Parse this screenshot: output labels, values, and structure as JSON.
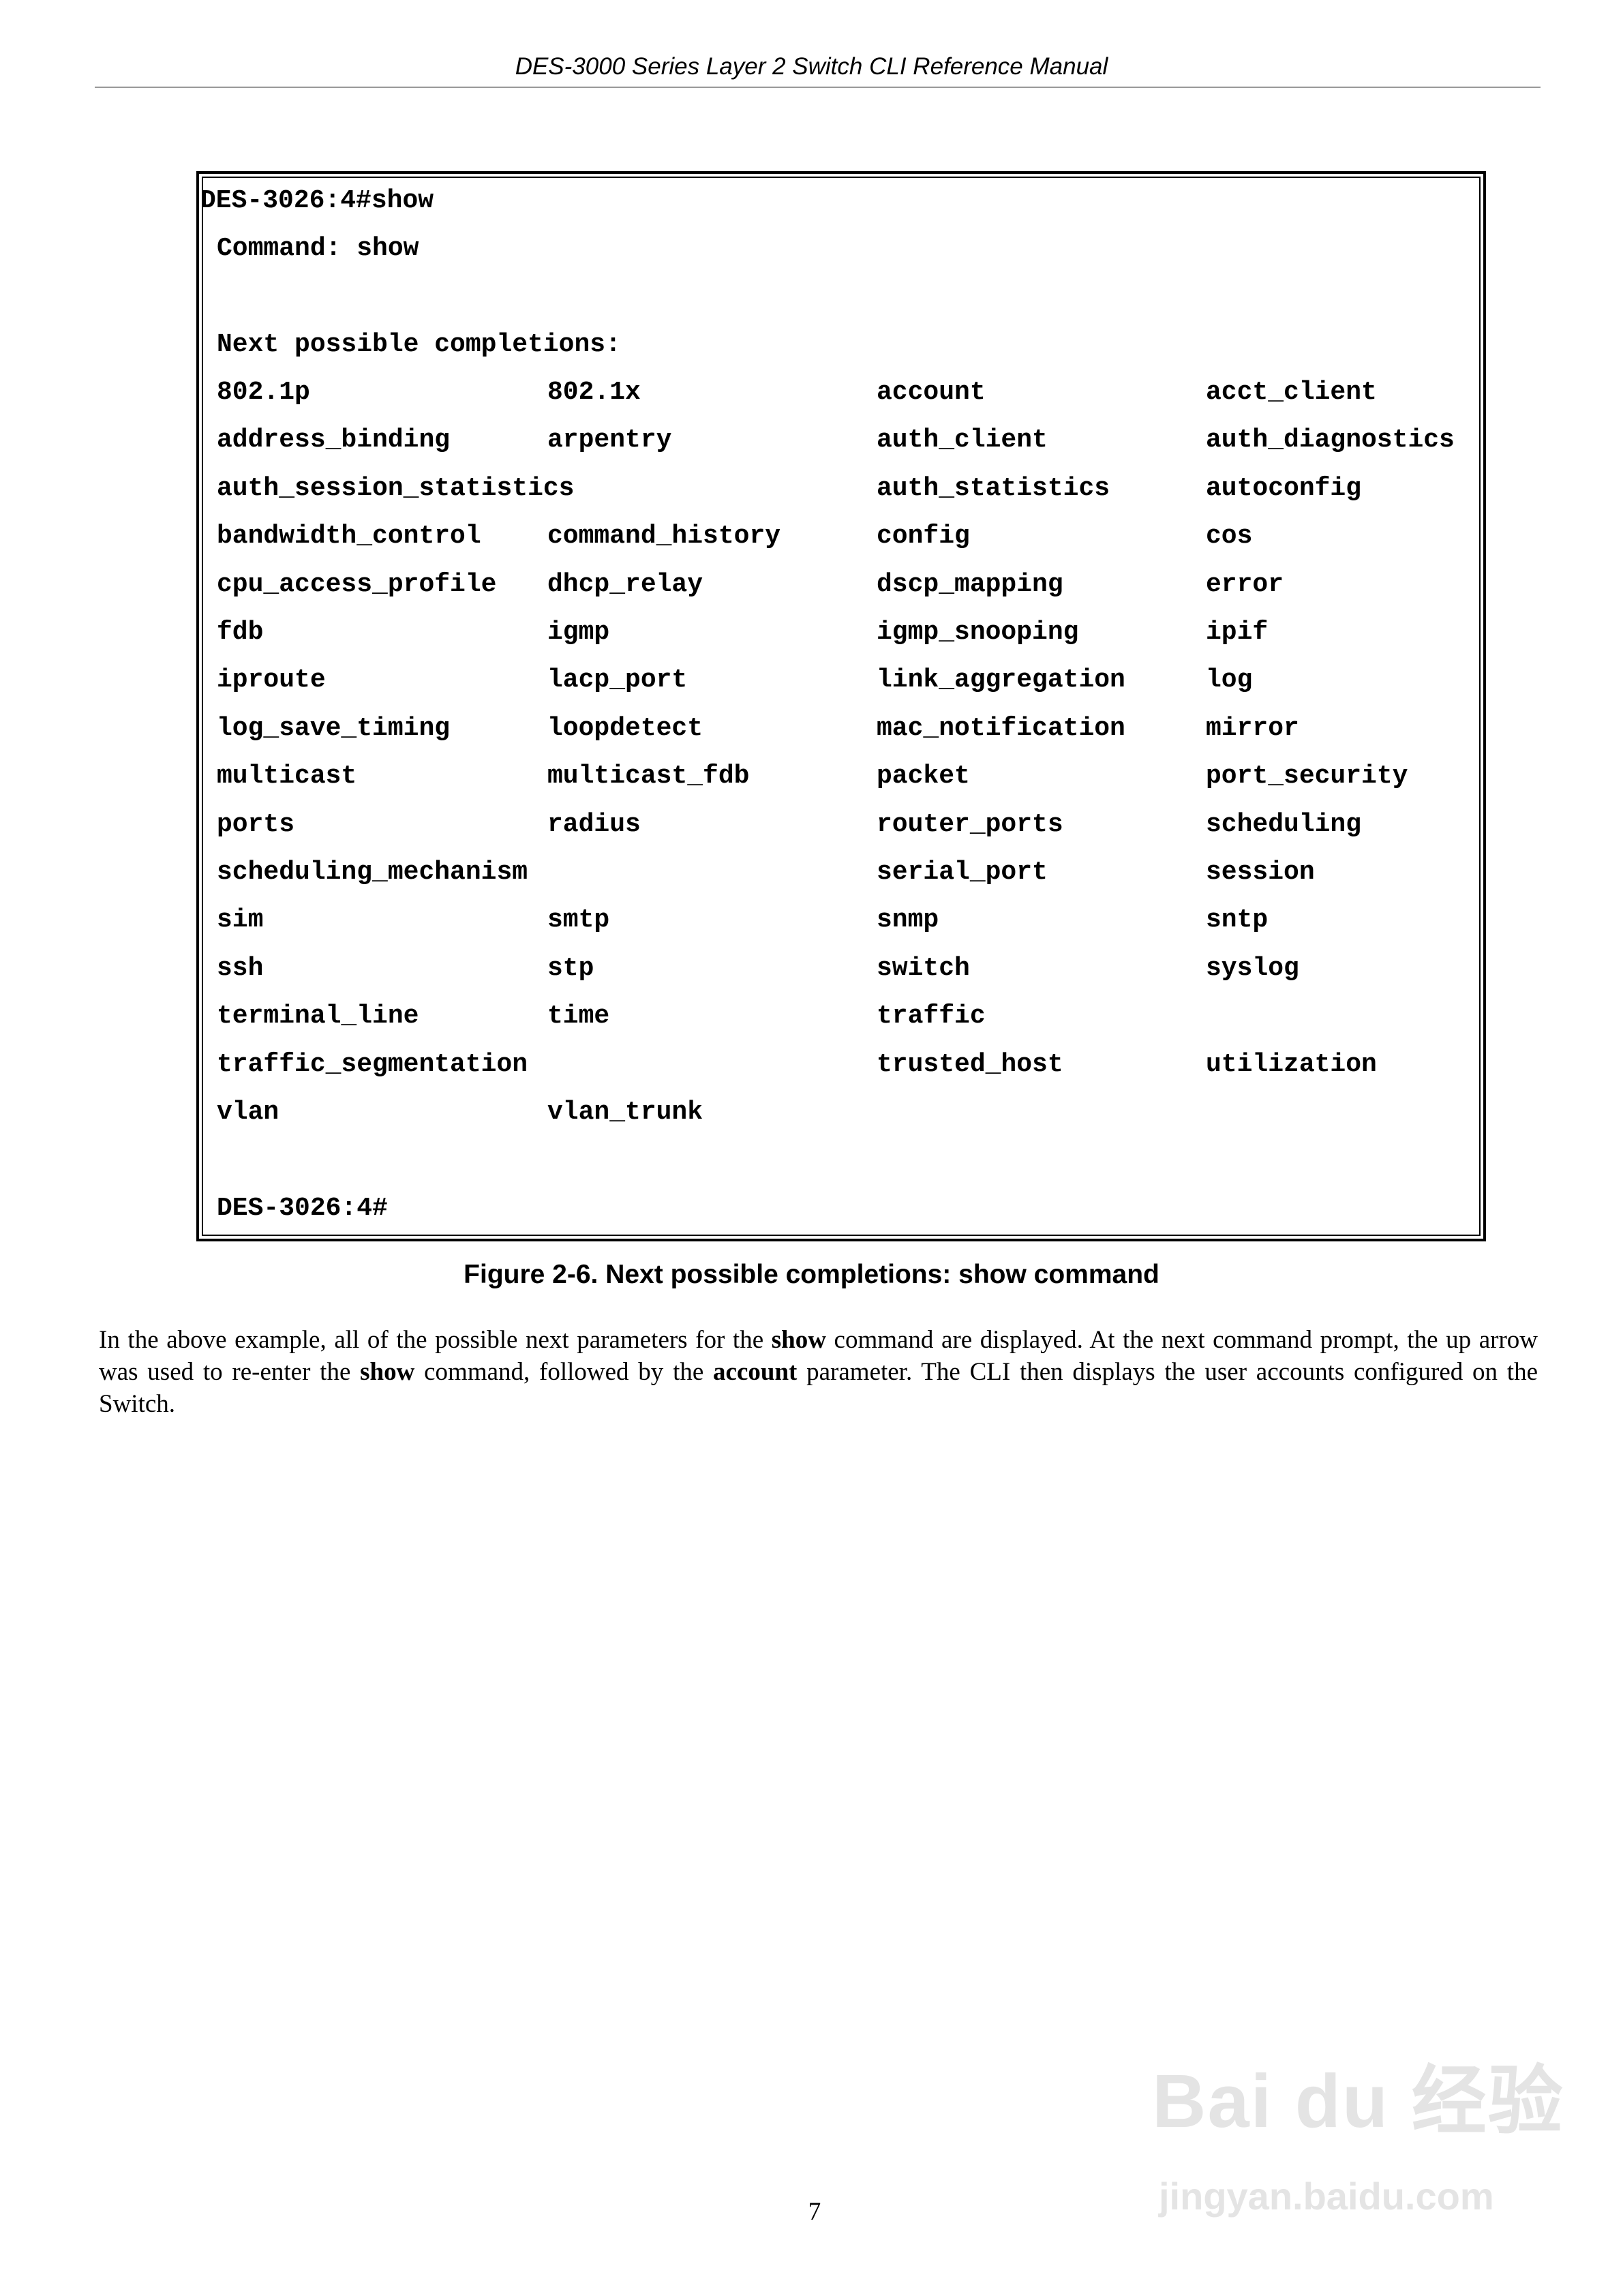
{
  "header": {
    "title": "DES-3000 Series Layer 2 Switch CLI Reference Manual"
  },
  "terminal": {
    "prompt_line": "DES-3026:4#show",
    "command_line": "Command: show",
    "completions_heading": "Next possible completions:",
    "rows": [
      [
        "802.1p",
        "802.1x",
        "account",
        "acct_client"
      ],
      [
        "address_binding",
        "arpentry",
        "auth_client",
        "auth_diagnostics"
      ],
      [
        "auth_session_statistics",
        "",
        "auth_statistics",
        "autoconfig"
      ],
      [
        "bandwidth_control",
        "command_history",
        "config",
        "cos"
      ],
      [
        "cpu_access_profile",
        "dhcp_relay",
        "dscp_mapping",
        "error"
      ],
      [
        "fdb",
        "igmp",
        "igmp_snooping",
        "ipif"
      ],
      [
        "iproute",
        "lacp_port",
        "link_aggregation",
        "log"
      ],
      [
        "log_save_timing",
        "loopdetect",
        "mac_notification",
        "mirror"
      ],
      [
        "multicast",
        "multicast_fdb",
        "packet",
        "port_security"
      ],
      [
        "ports",
        "radius",
        "router_ports",
        "scheduling"
      ],
      [
        "scheduling_mechanism",
        "",
        "serial_port",
        "session"
      ],
      [
        "sim",
        "smtp",
        "snmp",
        "sntp"
      ],
      [
        "ssh",
        "stp",
        "switch",
        "syslog"
      ],
      [
        "terminal_line",
        "time",
        "traffic",
        ""
      ],
      [
        "traffic_segmentation",
        "",
        "trusted_host",
        "utilization"
      ],
      [
        "vlan",
        "vlan_trunk",
        "",
        ""
      ]
    ],
    "final_prompt": "DES-3026:4#"
  },
  "caption": "Figure 2-6.  Next possible completions: show command",
  "paragraph": [
    {
      "text": "In the above example, all of the possible next parameters for the ",
      "bold": false
    },
    {
      "text": "show",
      "bold": true
    },
    {
      "text": " command are displayed. At the next command prompt, the up arrow was used to re-enter the ",
      "bold": false
    },
    {
      "text": "show",
      "bold": true
    },
    {
      "text": " command, followed by the ",
      "bold": false
    },
    {
      "text": "account",
      "bold": true
    },
    {
      "text": " parameter. The CLI then displays the user accounts configured on the Switch.",
      "bold": false
    }
  ],
  "page_number": "7",
  "watermark": {
    "logo": "Bai du 经验",
    "url": "jingyan.baidu.com"
  }
}
